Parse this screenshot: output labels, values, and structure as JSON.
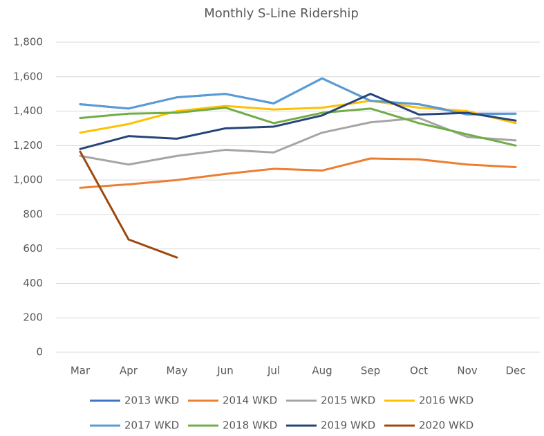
{
  "chart_data": {
    "type": "line",
    "title": "Monthly S-Line Ridership",
    "categories": [
      "Mar",
      "Apr",
      "May",
      "Jun",
      "Jul",
      "Aug",
      "Sep",
      "Oct",
      "Nov",
      "Dec"
    ],
    "series": [
      {
        "name": "2013 WKD",
        "color": "#4472c4",
        "values": [
          1440,
          1415,
          1480,
          1500,
          1445,
          1590,
          1460,
          1440,
          1385,
          1385
        ]
      },
      {
        "name": "2014 WKD",
        "color": "#ed7d31",
        "values": [
          955,
          975,
          1000,
          1035,
          1065,
          1055,
          1125,
          1120,
          1090,
          1075
        ]
      },
      {
        "name": "2015 WKD",
        "color": "#a5a5a5",
        "values": [
          1140,
          1090,
          1140,
          1175,
          1160,
          1275,
          1335,
          1360,
          1250,
          1230
        ]
      },
      {
        "name": "2016 WKD",
        "color": "#ffc000",
        "values": [
          1275,
          1325,
          1400,
          1430,
          1410,
          1420,
          1460,
          1420,
          1400,
          1330
        ]
      },
      {
        "name": "2017 WKD",
        "color": "#5b9bd5",
        "values": [
          1440,
          1415,
          1480,
          1500,
          1445,
          1590,
          1460,
          1440,
          1380,
          1385
        ]
      },
      {
        "name": "2018 WKD",
        "color": "#70ad47",
        "values": [
          1360,
          1385,
          1390,
          1420,
          1330,
          1390,
          1415,
          1330,
          1265,
          1200
        ]
      },
      {
        "name": "2019 WKD",
        "color": "#264478",
        "values": [
          1180,
          1255,
          1240,
          1300,
          1310,
          1375,
          1500,
          1380,
          1390,
          1345
        ]
      },
      {
        "name": "2020 WKD",
        "color": "#9e480e",
        "values": [
          1165,
          655,
          550,
          null,
          null,
          null,
          null,
          null,
          null,
          null
        ]
      }
    ],
    "ylim": [
      0,
      1800
    ],
    "yticks": [
      0,
      200,
      400,
      600,
      800,
      {
        "value": 1000,
        "label": "1,000"
      },
      {
        "value": 1200,
        "label": "1,200"
      },
      {
        "value": 1400,
        "label": "1,400"
      },
      {
        "value": 1600,
        "label": "1,600"
      },
      {
        "value": 1800,
        "label": "1,800"
      }
    ],
    "grid": true,
    "legend": "bottom"
  }
}
